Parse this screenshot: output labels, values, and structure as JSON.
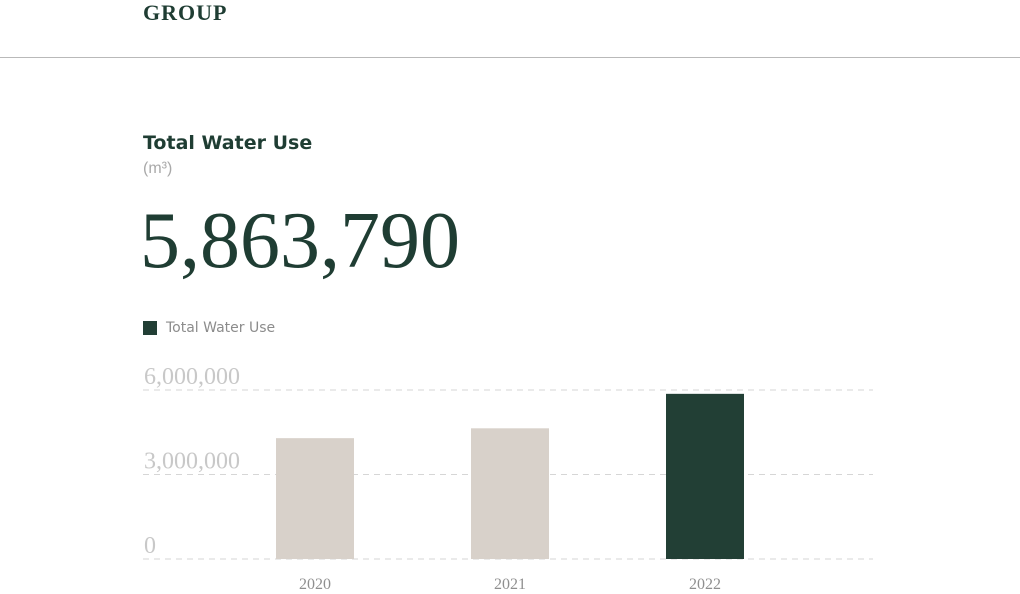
{
  "header": {
    "brand": "GROUP"
  },
  "chart_data": {
    "type": "bar",
    "title": "Total Water Use",
    "unit": "(m³)",
    "highlight_value": "5,863,790",
    "legend": [
      "Total Water Use"
    ],
    "legend_placement": "top-left",
    "categories": [
      "2020",
      "2021",
      "2022"
    ],
    "series": [
      {
        "name": "Total Water Use",
        "values": [
          4290000,
          4640000,
          5863790
        ]
      }
    ],
    "ylim": [
      0,
      6000000
    ],
    "y_ticks": [
      {
        "value": 0,
        "label": "0"
      },
      {
        "value": 3000000,
        "label": "3,000,000"
      },
      {
        "value": 6000000,
        "label": "6,000,000"
      }
    ],
    "grid": true,
    "highlight_category": "2022",
    "colors": {
      "default_bar": "#d8d1ca",
      "highlight_bar": "#223f35",
      "grid": "#d6d6d6",
      "text_dark": "#1f3d33"
    }
  }
}
